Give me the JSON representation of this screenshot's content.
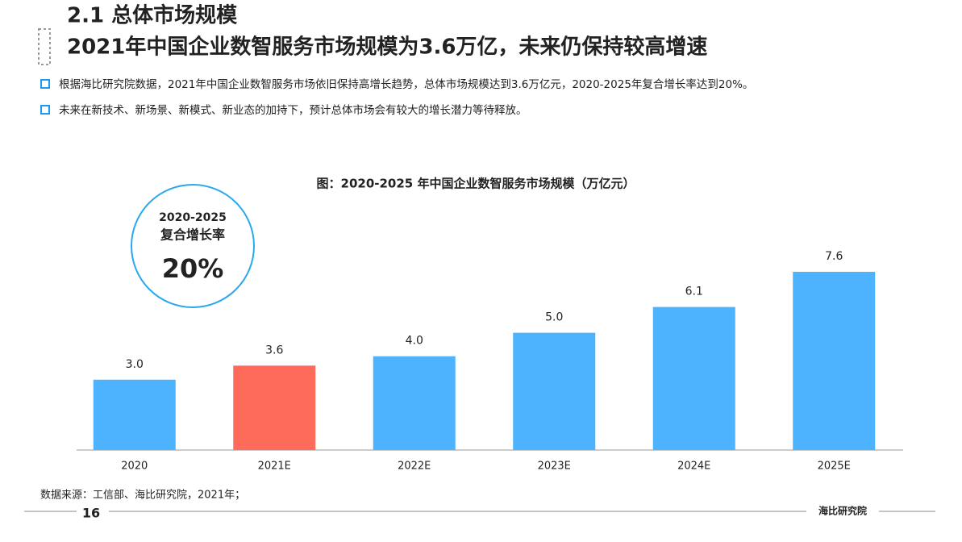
{
  "header": {
    "section": "2.1 总体市场规模",
    "headline": "2021年中国企业数智服务市场规模为3.6万亿，未来仍保持较高增速"
  },
  "bullets": [
    "根据海比研究院数据，2021年中国企业数智服务市场依旧保持高增长趋势，总体市场规模达到3.6万亿元，2020-2025年复合增长率达到20%。",
    "未来在新技术、新场景、新模式、新业态的加持下，预计总体市场会有较大的增长潜力等待释放。"
  ],
  "callout": {
    "period": "2020-2025",
    "label": "复合增长率",
    "value": "20%"
  },
  "chart_data": {
    "type": "bar",
    "title": "图：2020-2025 年中国企业数智服务市场规模（万亿元）",
    "categories": [
      "2020",
      "2021E",
      "2022E",
      "2023E",
      "2024E",
      "2025E"
    ],
    "values": [
      3.0,
      3.6,
      4.0,
      5.0,
      6.1,
      7.6
    ],
    "value_labels": [
      "3.0",
      "3.6",
      "4.0",
      "5.0",
      "6.1",
      "7.6"
    ],
    "colors": [
      "#4db3ff",
      "#ff6b5b",
      "#4db3ff",
      "#4db3ff",
      "#4db3ff",
      "#4db3ff"
    ]
  },
  "source": "数据来源：工信部、海比研究院，2021年；",
  "footer": {
    "page": "16",
    "logo": "海比研究院"
  }
}
